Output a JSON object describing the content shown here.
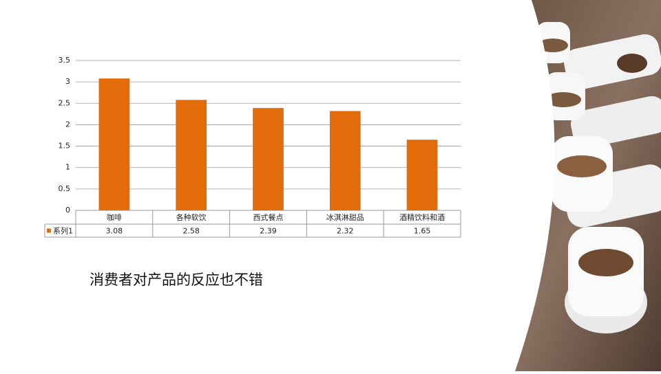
{
  "chart_data": {
    "type": "bar",
    "categories": [
      "咖啡",
      "各种软饮",
      "西式餐点",
      "冰淇淋甜品",
      "酒精饮料和酒"
    ],
    "series": [
      {
        "name": "系列1",
        "color": "#e36c0a",
        "values": [
          3.08,
          2.58,
          2.39,
          2.32,
          1.65
        ]
      }
    ],
    "ylim": [
      0,
      3.5
    ],
    "yticks": [
      0,
      0.5,
      1,
      1.5,
      2,
      2.5,
      3,
      3.5
    ],
    "grid": true,
    "data_table": true
  },
  "caption": "消费者对产品的反应也不错"
}
